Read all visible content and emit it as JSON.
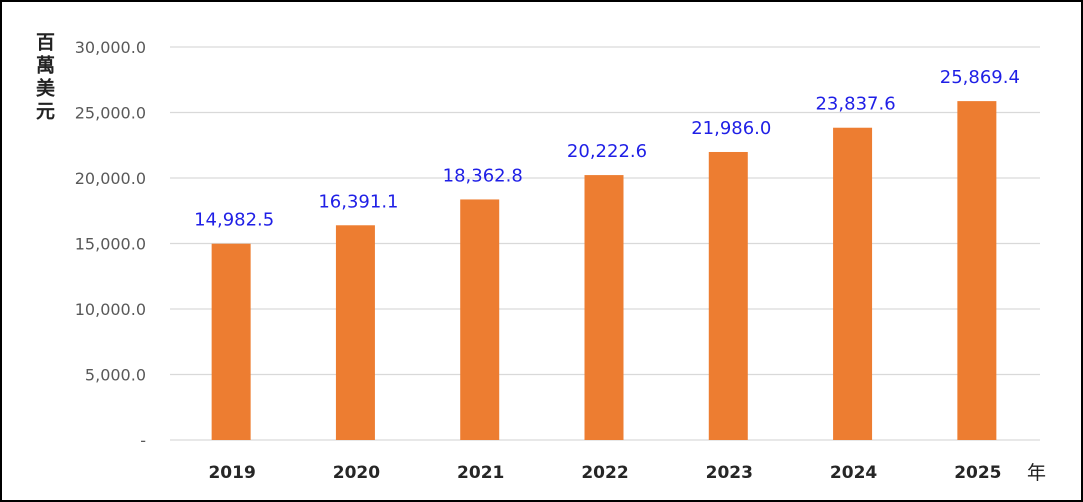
{
  "chart_data": {
    "type": "bar",
    "categories": [
      "2019",
      "2020",
      "2021",
      "2022",
      "2023",
      "2024",
      "2025"
    ],
    "values": [
      14982.5,
      16391.1,
      18362.8,
      20222.6,
      21986.0,
      23837.6,
      25869.4
    ],
    "value_labels": [
      "14,982.5",
      "16,391.1",
      "18,362.8",
      "20,222.6",
      "21,986.0",
      "23,837.6",
      "25,869.4"
    ],
    "ylabel": "百萬美元",
    "xlabel": "年",
    "ylim": [
      0,
      30000
    ],
    "yticks": [
      0,
      5000,
      10000,
      15000,
      20000,
      25000,
      30000
    ],
    "ytick_labels": [
      "-",
      "5,000.0",
      "10,000.0",
      "15,000.0",
      "20,000.0",
      "25,000.0",
      "30,000.0"
    ],
    "grid": true,
    "legend": "none",
    "colors": {
      "bar": "#ED7D31",
      "value_label": "#1F1FE6",
      "grid": "#D9D9D9",
      "axis_text": "#595959",
      "category_text": "#262626"
    }
  }
}
